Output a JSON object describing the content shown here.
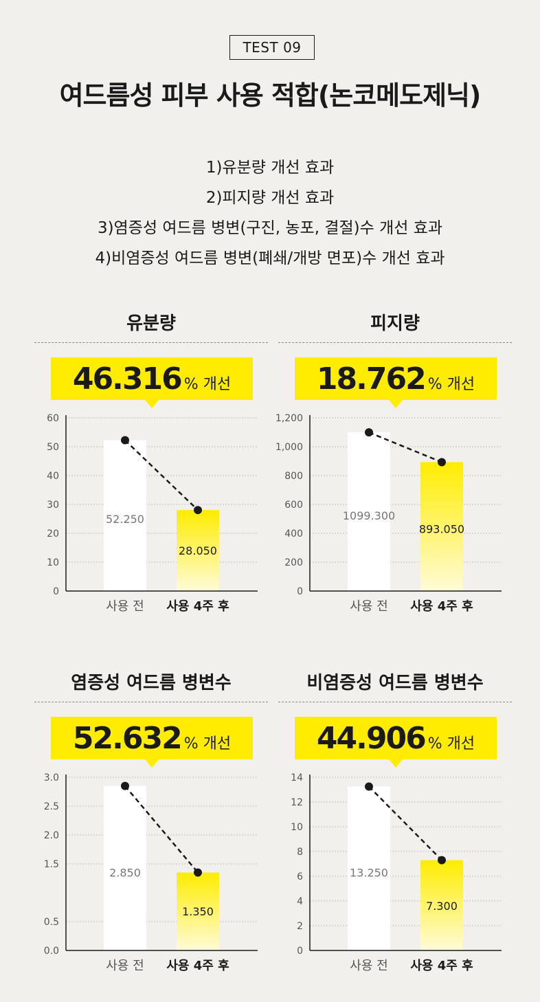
{
  "header": {
    "badge": "TEST 09",
    "title": "여드름성 피부 사용 적합(논코메도제닉)",
    "effects": [
      "1)유분량 개선 효과",
      "2)피지량 개선 효과",
      "3)염증성 여드름 병변(구진, 농포, 결절)수 개선 효과",
      "4)비염증성 여드름 병변(폐쇄/개방 면포)수 개선 효과"
    ]
  },
  "colors": {
    "accent": "#ffec00",
    "background": "#f2f0ec",
    "before_bar": "#ffffff"
  },
  "panels": [
    {
      "title": "유분량",
      "improvement": "46.316",
      "unit": "% 개선"
    },
    {
      "title": "피지량",
      "improvement": "18.762",
      "unit": "% 개선"
    },
    {
      "title": "염증성 여드름 병변수",
      "improvement": "52.632",
      "unit": "% 개선"
    },
    {
      "title": "비염증성 여드름 병변수",
      "improvement": "44.906",
      "unit": "% 개선"
    }
  ],
  "chart_data": [
    {
      "type": "bar",
      "title": "유분량",
      "categories": [
        "사용 전",
        "사용 4주 후"
      ],
      "values": [
        52.25,
        28.05
      ],
      "value_labels": [
        "52.250",
        "28.050"
      ],
      "ylim": [
        0,
        60
      ],
      "yticks": [
        0,
        10,
        20,
        30,
        40,
        50,
        60
      ],
      "ytick_labels": [
        "0",
        "10",
        "20",
        "30",
        "40",
        "50",
        "60"
      ],
      "grid": true,
      "trend_line": "dashed"
    },
    {
      "type": "bar",
      "title": "피지량",
      "categories": [
        "사용 전",
        "사용 4주 후"
      ],
      "values": [
        1099.3,
        893.05
      ],
      "value_labels": [
        "1099.300",
        "893.050"
      ],
      "ylim": [
        0,
        1200
      ],
      "yticks": [
        0,
        200,
        400,
        600,
        800,
        1000,
        1200
      ],
      "ytick_labels": [
        "0",
        "200",
        "400",
        "600",
        "800",
        "1,000",
        "1,200"
      ],
      "grid": true,
      "trend_line": "dashed"
    },
    {
      "type": "bar",
      "title": "염증성 여드름 병변수",
      "categories": [
        "사용 전",
        "사용 4주 후"
      ],
      "values": [
        2.85,
        1.35
      ],
      "value_labels": [
        "2.850",
        "1.350"
      ],
      "ylim": [
        0,
        3
      ],
      "yticks": [
        0,
        0.5,
        1.5,
        2,
        2.5,
        3
      ],
      "ytick_labels": [
        "0.0",
        "0.5",
        "1.5",
        "2.0",
        "2.5",
        "3.0"
      ],
      "grid": true,
      "trend_line": "dashed"
    },
    {
      "type": "bar",
      "title": "비염증성 여드름 병변수",
      "categories": [
        "사용 전",
        "사용 4주 후"
      ],
      "values": [
        13.25,
        7.3
      ],
      "value_labels": [
        "13.250",
        "7.300"
      ],
      "ylim": [
        0,
        14
      ],
      "yticks": [
        0,
        2,
        4,
        6,
        8,
        10,
        12,
        14
      ],
      "ytick_labels": [
        "0",
        "2",
        "4",
        "6",
        "8",
        "10",
        "12",
        "14"
      ],
      "grid": true,
      "trend_line": "dashed"
    }
  ]
}
